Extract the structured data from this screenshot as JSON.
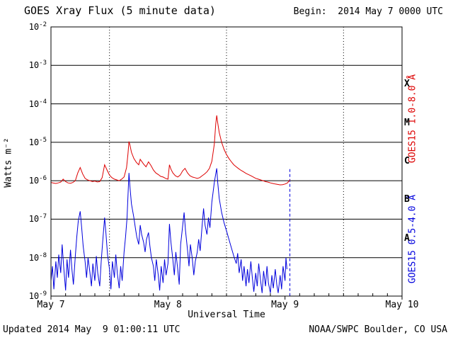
{
  "header": {
    "title": "GOES Xray Flux (5 minute data)",
    "begin_label": "Begin:  2014 May 7 0000 UTC"
  },
  "footer": {
    "updated": "Updated 2014 May  9 01:00:11 UTC",
    "source": "NOAA/SWPC Boulder, CO USA"
  },
  "chart_data": {
    "type": "line",
    "title": "GOES Xray Flux (5 minute data)",
    "xlabel": "Universal Time",
    "ylabel": "Watts m⁻²",
    "x_unit": "hours since 2014 May 7 0000 UTC",
    "xlim": [
      0,
      72
    ],
    "ylim_log10": [
      -9,
      -2
    ],
    "grid": "horizontal solid lines at each decade, vertical dotted lines at 1200 UT",
    "x_ticks": [
      {
        "t": 0,
        "label": "May 7"
      },
      {
        "t": 24,
        "label": "May 8"
      },
      {
        "t": 48,
        "label": "May 9"
      },
      {
        "t": 72,
        "label": "May 10"
      }
    ],
    "minor_tick_interval_hours": 3,
    "y_tick_exponents": [
      -2,
      -3,
      -4,
      -5,
      -6,
      -7,
      -8,
      -9
    ],
    "flare_class_labels": [
      {
        "label": "X",
        "log_center": -3.5
      },
      {
        "label": "M",
        "log_center": -4.5
      },
      {
        "label": "C",
        "log_center": -5.5
      },
      {
        "label": "B",
        "log_center": -6.5
      },
      {
        "label": "A",
        "log_center": -7.5
      }
    ],
    "noon_gridlines_t": [
      12,
      36,
      60
    ],
    "end_marker": {
      "t": 49.0,
      "flux_top": 2e-06,
      "flux_bottom": 1e-09
    },
    "series": [
      {
        "name": "GOES15 1.0-8.0 Å",
        "color": "#dd0000",
        "points": [
          [
            0,
            9e-07
          ],
          [
            0.5,
            8.7e-07
          ],
          [
            1,
            8.5e-07
          ],
          [
            1.5,
            8.8e-07
          ],
          [
            2,
            9.2e-07
          ],
          [
            2.5,
            1.1e-06
          ],
          [
            3,
            9.5e-07
          ],
          [
            3.5,
            8.8e-07
          ],
          [
            4,
            8.6e-07
          ],
          [
            4.5,
            9e-07
          ],
          [
            5,
            1e-06
          ],
          [
            5.5,
            1.6e-06
          ],
          [
            6,
            2.2e-06
          ],
          [
            6.5,
            1.5e-06
          ],
          [
            7,
            1.15e-06
          ],
          [
            7.5,
            1.05e-06
          ],
          [
            8,
            1e-06
          ],
          [
            8.5,
            9.5e-07
          ],
          [
            9,
            9.8e-07
          ],
          [
            9.5,
            9.3e-07
          ],
          [
            10,
            9.5e-07
          ],
          [
            10.5,
            1.2e-06
          ],
          [
            11,
            2.6e-06
          ],
          [
            11.5,
            1.9e-06
          ],
          [
            12,
            1.4e-06
          ],
          [
            12.5,
            1.2e-06
          ],
          [
            13,
            1.1e-06
          ],
          [
            13.5,
            1.05e-06
          ],
          [
            14,
            1e-06
          ],
          [
            14.5,
            1.1e-06
          ],
          [
            15,
            1.25e-06
          ],
          [
            15.5,
            2.2e-06
          ],
          [
            15.8,
            5e-06
          ],
          [
            16,
            1.05e-05
          ],
          [
            16.2,
            8.5e-06
          ],
          [
            16.5,
            5.5e-06
          ],
          [
            17,
            3.8e-06
          ],
          [
            17.5,
            3e-06
          ],
          [
            18,
            2.6e-06
          ],
          [
            18.3,
            3.6e-06
          ],
          [
            18.6,
            3.2e-06
          ],
          [
            19,
            2.7e-06
          ],
          [
            19.5,
            2.3e-06
          ],
          [
            20,
            3.1e-06
          ],
          [
            20.5,
            2.5e-06
          ],
          [
            21,
            1.9e-06
          ],
          [
            21.5,
            1.6e-06
          ],
          [
            22,
            1.45e-06
          ],
          [
            22.5,
            1.3e-06
          ],
          [
            23,
            1.25e-06
          ],
          [
            23.5,
            1.15e-06
          ],
          [
            24,
            1.1e-06
          ],
          [
            24.3,
            2.6e-06
          ],
          [
            24.6,
            2e-06
          ],
          [
            25,
            1.6e-06
          ],
          [
            25.5,
            1.35e-06
          ],
          [
            26,
            1.25e-06
          ],
          [
            26.5,
            1.4e-06
          ],
          [
            27,
            1.8e-06
          ],
          [
            27.5,
            2.1e-06
          ],
          [
            28,
            1.6e-06
          ],
          [
            28.5,
            1.35e-06
          ],
          [
            29,
            1.25e-06
          ],
          [
            29.5,
            1.2e-06
          ],
          [
            30,
            1.15e-06
          ],
          [
            30.5,
            1.2e-06
          ],
          [
            31,
            1.35e-06
          ],
          [
            31.5,
            1.5e-06
          ],
          [
            32,
            1.7e-06
          ],
          [
            32.5,
            2.1e-06
          ],
          [
            33,
            3.2e-06
          ],
          [
            33.5,
            9e-06
          ],
          [
            33.8,
            3e-05
          ],
          [
            34,
            5e-05
          ],
          [
            34.2,
            3.2e-05
          ],
          [
            34.5,
            1.8e-05
          ],
          [
            35,
            1e-05
          ],
          [
            35.5,
            6.5e-06
          ],
          [
            36,
            4.8e-06
          ],
          [
            36.5,
            3.8e-06
          ],
          [
            37,
            3.1e-06
          ],
          [
            37.5,
            2.6e-06
          ],
          [
            38,
            2.3e-06
          ],
          [
            38.5,
            2.05e-06
          ],
          [
            39,
            1.85e-06
          ],
          [
            39.5,
            1.7e-06
          ],
          [
            40,
            1.55e-06
          ],
          [
            40.5,
            1.45e-06
          ],
          [
            41,
            1.35e-06
          ],
          [
            41.5,
            1.25e-06
          ],
          [
            42,
            1.15e-06
          ],
          [
            42.5,
            1.1e-06
          ],
          [
            43,
            1.05e-06
          ],
          [
            43.5,
            1e-06
          ],
          [
            44,
            9.5e-07
          ],
          [
            44.5,
            9.2e-07
          ],
          [
            45,
            8.8e-07
          ],
          [
            45.5,
            8.5e-07
          ],
          [
            46,
            8.2e-07
          ],
          [
            46.5,
            8e-07
          ],
          [
            47,
            7.8e-07
          ],
          [
            47.5,
            7.9e-07
          ],
          [
            48,
            8.2e-07
          ],
          [
            48.5,
            8.8e-07
          ],
          [
            49,
            1.05e-06
          ]
        ]
      },
      {
        "name": "GOES15 0.5-4.0 Å",
        "color": "#0000dd",
        "points": [
          [
            0,
            2.5e-09
          ],
          [
            0.3,
            6e-09
          ],
          [
            0.6,
            1.5e-09
          ],
          [
            1,
            8e-09
          ],
          [
            1.3,
            3e-09
          ],
          [
            1.6,
            1.2e-08
          ],
          [
            2,
            4e-09
          ],
          [
            2.3,
            2.2e-08
          ],
          [
            2.6,
            6e-09
          ],
          [
            3,
            1.4e-09
          ],
          [
            3.3,
            9e-09
          ],
          [
            3.6,
            3e-09
          ],
          [
            4,
            1.6e-08
          ],
          [
            4.3,
            5e-09
          ],
          [
            4.6,
            2e-09
          ],
          [
            5,
            1.1e-08
          ],
          [
            5.3,
            3.5e-08
          ],
          [
            5.6,
            9e-08
          ],
          [
            6,
            1.6e-07
          ],
          [
            6.3,
            6e-08
          ],
          [
            6.6,
            2e-08
          ],
          [
            7,
            8e-09
          ],
          [
            7.3,
            3e-09
          ],
          [
            7.6,
            1e-08
          ],
          [
            8,
            4e-09
          ],
          [
            8.3,
            1.8e-09
          ],
          [
            8.6,
            7e-09
          ],
          [
            9,
            2.5e-09
          ],
          [
            9.3,
            1.1e-08
          ],
          [
            9.6,
            4e-09
          ],
          [
            10,
            1.8e-09
          ],
          [
            10.3,
            8e-09
          ],
          [
            10.6,
            2.5e-08
          ],
          [
            11,
            1.1e-07
          ],
          [
            11.3,
            4e-08
          ],
          [
            11.6,
            1.2e-08
          ],
          [
            12,
            5e-09
          ],
          [
            12.3,
            1.5e-09
          ],
          [
            12.6,
            8e-09
          ],
          [
            13,
            3e-09
          ],
          [
            13.3,
            1.2e-08
          ],
          [
            13.6,
            4e-09
          ],
          [
            14,
            1.6e-09
          ],
          [
            14.3,
            6e-09
          ],
          [
            14.6,
            2.5e-09
          ],
          [
            15,
            1.4e-08
          ],
          [
            15.3,
            3.5e-08
          ],
          [
            15.6,
            1.1e-07
          ],
          [
            15.8,
            4e-07
          ],
          [
            16,
            1.6e-06
          ],
          [
            16.2,
            7e-07
          ],
          [
            16.5,
            2.5e-07
          ],
          [
            17,
            1.1e-07
          ],
          [
            17.3,
            6e-08
          ],
          [
            17.6,
            3.5e-08
          ],
          [
            18,
            2.2e-08
          ],
          [
            18.3,
            7e-08
          ],
          [
            18.6,
            4e-08
          ],
          [
            19,
            2.5e-08
          ],
          [
            19.3,
            1.4e-08
          ],
          [
            19.6,
            3e-08
          ],
          [
            20,
            4.5e-08
          ],
          [
            20.3,
            2e-08
          ],
          [
            20.6,
            1e-08
          ],
          [
            21,
            6e-09
          ],
          [
            21.3,
            2.5e-09
          ],
          [
            21.6,
            9e-09
          ],
          [
            22,
            3.5e-09
          ],
          [
            22.3,
            1.4e-09
          ],
          [
            22.6,
            6e-09
          ],
          [
            23,
            2.2e-09
          ],
          [
            23.3,
            9e-09
          ],
          [
            23.6,
            3.5e-09
          ],
          [
            24,
            7e-09
          ],
          [
            24.3,
            7.5e-08
          ],
          [
            24.6,
            2.5e-08
          ],
          [
            25,
            9e-09
          ],
          [
            25.3,
            3.5e-09
          ],
          [
            25.6,
            1.4e-08
          ],
          [
            26,
            5e-09
          ],
          [
            26.3,
            2e-09
          ],
          [
            26.6,
            2.2e-08
          ],
          [
            27,
            6.5e-08
          ],
          [
            27.3,
            1.5e-07
          ],
          [
            27.6,
            5e-08
          ],
          [
            28,
            1.6e-08
          ],
          [
            28.3,
            6e-09
          ],
          [
            28.6,
            2.2e-08
          ],
          [
            29,
            9e-09
          ],
          [
            29.3,
            3.5e-09
          ],
          [
            29.6,
            8e-09
          ],
          [
            30,
            1.4e-08
          ],
          [
            30.3,
            3e-08
          ],
          [
            30.6,
            1.5e-08
          ],
          [
            31,
            7e-08
          ],
          [
            31.3,
            1.9e-07
          ],
          [
            31.6,
            7e-08
          ],
          [
            32,
            4e-08
          ],
          [
            32.3,
            1.1e-07
          ],
          [
            32.6,
            6e-08
          ],
          [
            33,
            2.8e-07
          ],
          [
            33.5,
            9e-07
          ],
          [
            33.8,
            1.5e-06
          ],
          [
            34,
            2.1e-06
          ],
          [
            34.2,
            9e-07
          ],
          [
            34.5,
            3.5e-07
          ],
          [
            35,
            1.5e-07
          ],
          [
            35.5,
            8e-08
          ],
          [
            36,
            5e-08
          ],
          [
            36.5,
            3e-08
          ],
          [
            37,
            1.8e-08
          ],
          [
            37.5,
            1.1e-08
          ],
          [
            38,
            7e-09
          ],
          [
            38.3,
            1.3e-08
          ],
          [
            38.6,
            4e-09
          ],
          [
            39,
            9e-09
          ],
          [
            39.3,
            2.5e-09
          ],
          [
            39.6,
            6e-09
          ],
          [
            40,
            1.8e-09
          ],
          [
            40.3,
            5e-09
          ],
          [
            40.6,
            2.2e-09
          ],
          [
            41,
            8e-09
          ],
          [
            41.3,
            3e-09
          ],
          [
            41.6,
            1.3e-09
          ],
          [
            42,
            4e-09
          ],
          [
            42.3,
            1.8e-09
          ],
          [
            42.6,
            7e-09
          ],
          [
            43,
            2.5e-09
          ],
          [
            43.3,
            1.2e-09
          ],
          [
            43.6,
            4.5e-09
          ],
          [
            44,
            1.8e-09
          ],
          [
            44.3,
            6e-09
          ],
          [
            44.6,
            2.2e-09
          ],
          [
            45,
            1.2e-09
          ],
          [
            45.3,
            3.5e-09
          ],
          [
            45.6,
            1.6e-09
          ],
          [
            46,
            5e-09
          ],
          [
            46.3,
            2e-09
          ],
          [
            46.6,
            1.2e-09
          ],
          [
            47,
            3.5e-09
          ],
          [
            47.3,
            1.5e-09
          ],
          [
            47.6,
            6e-09
          ],
          [
            48,
            2.5e-09
          ],
          [
            48.2,
            1e-08
          ],
          [
            48.4,
            5e-09
          ]
        ]
      }
    ]
  },
  "colors": {
    "background": "#ffffff",
    "axis": "#000000",
    "long_band": "#dd0000",
    "short_band": "#0000dd"
  }
}
